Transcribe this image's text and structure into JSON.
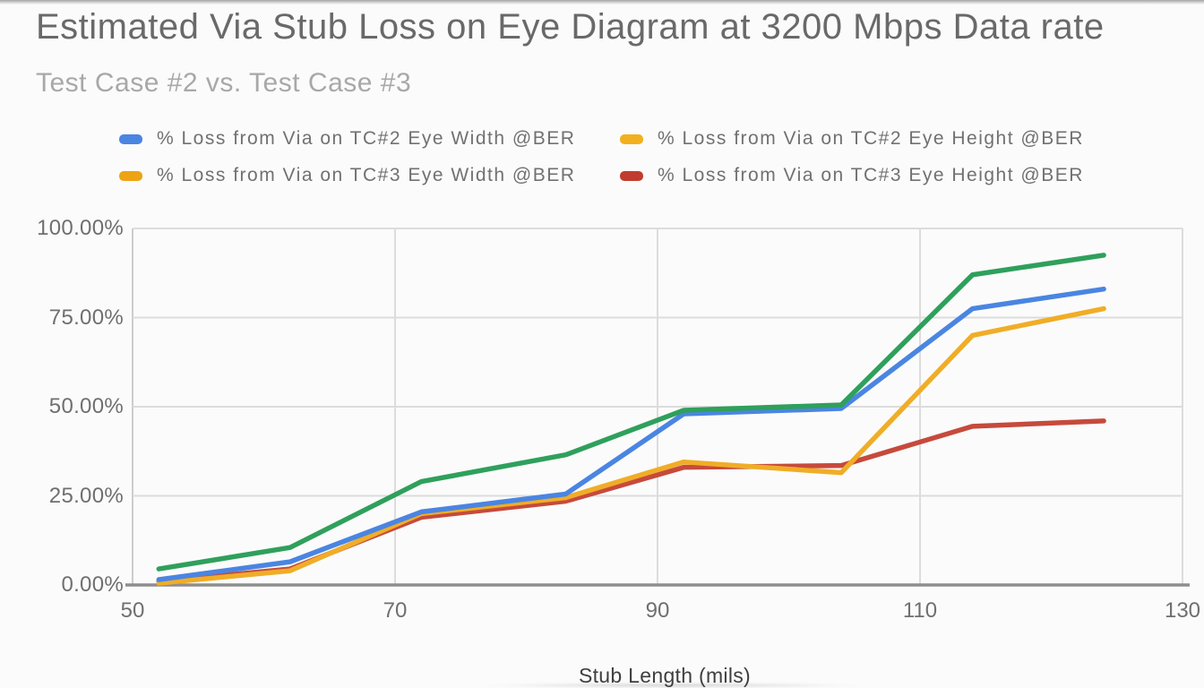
{
  "title": "Estimated Via Stub Loss on Eye Diagram at 3200 Mbps Data rate",
  "subtitle": "Test Case #2 vs. Test Case #3",
  "legend": {
    "position": "top, two columns",
    "items": [
      {
        "label": "% Loss from Via on TC#2 Eye Width @BER",
        "swatch_color": "#4a85e2"
      },
      {
        "label": "% Loss from Via on TC#2 Eye Height @BER",
        "swatch_color": "#f2b01e"
      },
      {
        "label": "% Loss from Via on TC#3 Eye Width @BER",
        "swatch_color": "#eda313"
      },
      {
        "label": "% Loss from Via on TC#3 Eye Height @BER",
        "swatch_color": "#c23b30"
      }
    ]
  },
  "chart_data": {
    "type": "line",
    "title": "Estimated Via Stub Loss on Eye Diagram at 3200 Mbps Data rate",
    "subtitle": "Test Case #2 vs. Test Case #3",
    "xlabel": "Stub Length (mils)",
    "ylabel": "",
    "xlim": [
      50,
      130
    ],
    "ylim": [
      0,
      100
    ],
    "grid": true,
    "x_tick_values": [
      50,
      70,
      90,
      110,
      130
    ],
    "x_tick_labels": [
      "50",
      "70",
      "90",
      "110",
      "130"
    ],
    "y_tick_values": [
      0,
      25,
      50,
      75,
      100
    ],
    "y_tick_labels": [
      "0.00%",
      "25.00%",
      "50.00%",
      "75.00%",
      "100.00%"
    ],
    "x": [
      52,
      62,
      72,
      83,
      92,
      104,
      114,
      124
    ],
    "series": [
      {
        "name": "% Loss from Via on TC#2 Eye Width @BER",
        "line_color": "#4a85e2",
        "values": [
          1.5,
          6.5,
          20.5,
          25.5,
          48,
          49.5,
          77.5,
          83
        ]
      },
      {
        "name": "% Loss from Via on TC#2 Eye Height @BER",
        "line_color": "#f0ad27",
        "values": [
          0.5,
          4,
          20,
          24.5,
          34.5,
          31.5,
          70,
          77.5
        ]
      },
      {
        "name": "% Loss from Via on TC#3 Eye Width @BER",
        "line_color": "#2fa05c",
        "values": [
          4.5,
          10.5,
          29,
          36.5,
          49,
          50.5,
          87,
          92.5
        ]
      },
      {
        "name": "% Loss from Via on TC#3 Eye Height @BER",
        "line_color": "#c64a3c",
        "values": [
          1,
          4.5,
          19,
          23.5,
          33,
          33.5,
          44.5,
          46
        ]
      }
    ]
  },
  "colors": {
    "background": "#fbfbfb",
    "gridline": "#dcdcdc",
    "axis_line": "#8e8e8e",
    "left_axis_line": "#cccccc",
    "title_text": "#696969",
    "subtitle_text": "#a8a8a8",
    "legend_text": "#717171",
    "tick_text": "#6f6f6f",
    "axis_title_text": "#3f3f3f"
  }
}
